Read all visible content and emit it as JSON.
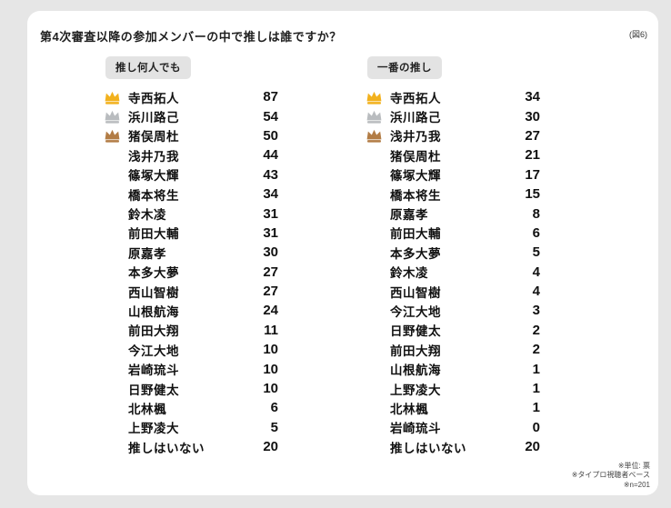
{
  "page": {
    "title": "第4次審査以降の参加メンバーの中で推しは誰ですか？",
    "figure_label": "(図6)",
    "footnotes": [
      "※単位: 票",
      "※タイプロ視聴者ベース",
      "※n=201"
    ]
  },
  "colors": {
    "page_bg": "#e6e6e6",
    "card_bg": "#ffffff",
    "pill_bg": "#e3e3e3",
    "text": "#111111",
    "gold": "#f2b11d",
    "silver": "#b9bcbf",
    "bronze": "#b27c45"
  },
  "chart_data": [
    {
      "type": "table",
      "title": "推し何人でも",
      "unit": "票",
      "rows": [
        {
          "name": "寺西拓人",
          "value": 87,
          "crown": "gold"
        },
        {
          "name": "浜川路己",
          "value": 54,
          "crown": "silver"
        },
        {
          "name": "猪俣周杜",
          "value": 50,
          "crown": "bronze"
        },
        {
          "name": "浅井乃我",
          "value": 44
        },
        {
          "name": "篠塚大輝",
          "value": 43
        },
        {
          "name": "橋本将生",
          "value": 34
        },
        {
          "name": "鈴木凌",
          "value": 31
        },
        {
          "name": "前田大輔",
          "value": 31
        },
        {
          "name": "原嘉孝",
          "value": 30
        },
        {
          "name": "本多大夢",
          "value": 27
        },
        {
          "name": "西山智樹",
          "value": 27
        },
        {
          "name": "山根航海",
          "value": 24
        },
        {
          "name": "前田大翔",
          "value": 11
        },
        {
          "name": "今江大地",
          "value": 10
        },
        {
          "name": "岩崎琉斗",
          "value": 10
        },
        {
          "name": "日野健太",
          "value": 10
        },
        {
          "name": "北林楓",
          "value": 6
        },
        {
          "name": "上野凌大",
          "value": 5
        },
        {
          "name": "推しはいない",
          "value": 20
        }
      ]
    },
    {
      "type": "table",
      "title": "一番の推し",
      "unit": "票",
      "rows": [
        {
          "name": "寺西拓人",
          "value": 34,
          "crown": "gold"
        },
        {
          "name": "浜川路己",
          "value": 30,
          "crown": "silver"
        },
        {
          "name": "浅井乃我",
          "value": 27,
          "crown": "bronze"
        },
        {
          "name": "猪俣周杜",
          "value": 21
        },
        {
          "name": "篠塚大輝",
          "value": 17
        },
        {
          "name": "橋本将生",
          "value": 15
        },
        {
          "name": "原嘉孝",
          "value": 8
        },
        {
          "name": "前田大輔",
          "value": 6
        },
        {
          "name": "本多大夢",
          "value": 5
        },
        {
          "name": "鈴木凌",
          "value": 4
        },
        {
          "name": "西山智樹",
          "value": 4
        },
        {
          "name": "今江大地",
          "value": 3
        },
        {
          "name": "日野健太",
          "value": 2
        },
        {
          "name": "前田大翔",
          "value": 2
        },
        {
          "name": "山根航海",
          "value": 1
        },
        {
          "name": "上野凌大",
          "value": 1
        },
        {
          "name": "北林楓",
          "value": 1
        },
        {
          "name": "岩崎琉斗",
          "value": 0
        },
        {
          "name": "推しはいない",
          "value": 20
        }
      ]
    }
  ]
}
